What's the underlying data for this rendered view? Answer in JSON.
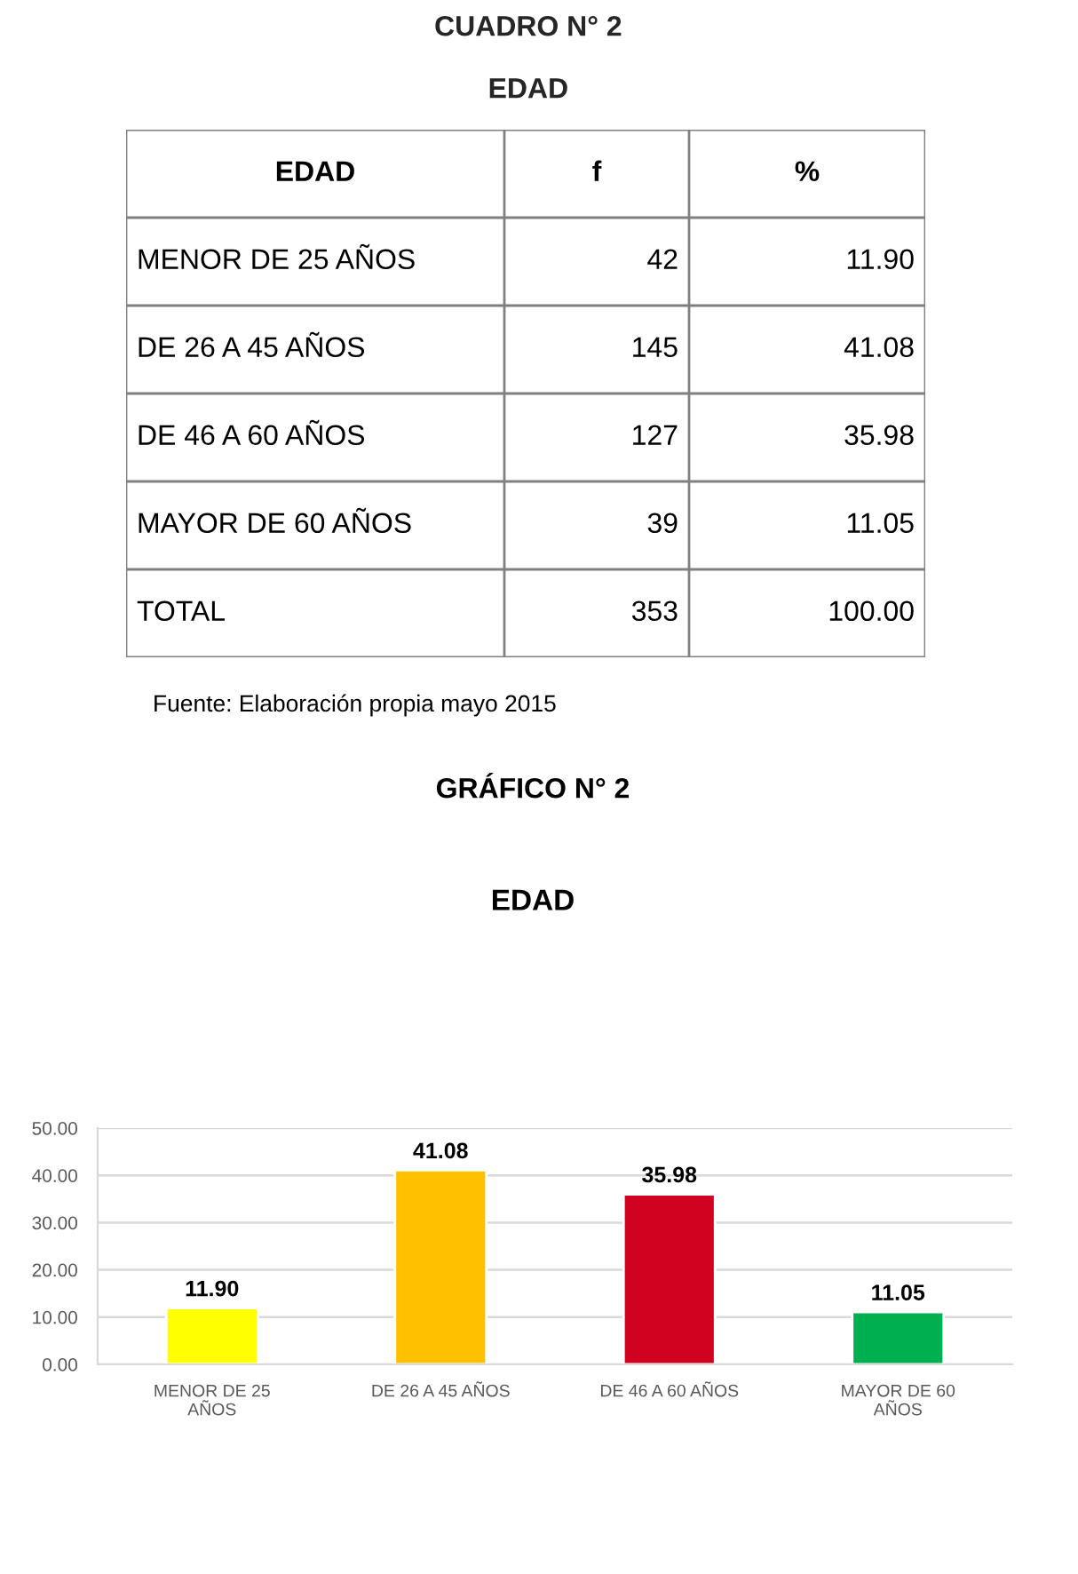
{
  "chart_data": [
    {
      "type": "other",
      "title": "CUADRO N° 2",
      "subtitle": "EDAD",
      "xlabel": "EDAD",
      "categories": [
        "MENOR DE 25 AÑOS",
        "DE 26 A 45 AÑOS",
        "DE 46 A 60 AÑOS",
        "MAYOR DE 60 AÑOS",
        "TOTAL"
      ],
      "series": [
        {
          "name": "f",
          "values": [
            42,
            145,
            127,
            39,
            353
          ]
        },
        {
          "name": "%",
          "values": [
            11.9,
            41.08,
            35.98,
            11.05,
            100
          ],
          "value_labels": [
            "11.90",
            "41.08",
            "35.98",
            "11.05",
            "100.00"
          ]
        }
      ],
      "data_labels": true,
      "annotations": [
        "Fuente: Elaboración propia mayo 2015"
      ]
    },
    {
      "type": "bar",
      "title": "EDAD",
      "annotations": [
        "GRÁFICO N° 2"
      ],
      "categories": [
        "MENOR DE 25\nAÑOS",
        "DE 26 A 45 AÑOS",
        "DE 46 A 60 AÑOS",
        "MAYOR DE 60\nAÑOS"
      ],
      "values": [
        11.9,
        41.08,
        35.98,
        11.05
      ],
      "value_labels": [
        "11.90",
        "41.08",
        "35.98",
        "11.05"
      ],
      "colors": [
        "#ffff00",
        "#ffc000",
        "#d0021f",
        "#00b050"
      ],
      "ylim": [
        0,
        50
      ],
      "yticks": [
        {
          "value": 0,
          "label": "0.00"
        },
        {
          "value": 10,
          "label": "10.00"
        },
        {
          "value": 20,
          "label": "20.00"
        },
        {
          "value": 30,
          "label": "30.00"
        },
        {
          "value": 40,
          "label": "40.00"
        },
        {
          "value": 50,
          "label": "50.00"
        }
      ],
      "grid": "y"
    }
  ]
}
